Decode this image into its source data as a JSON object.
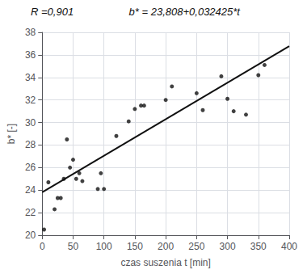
{
  "chart_data": {
    "type": "scatter",
    "x_label": "czas suszenia t [min]",
    "y_label": "b* [-]",
    "annotations": [
      "R =0,901",
      "b* = 23,808+0,032425*t"
    ],
    "series": [
      {
        "type": "scatter",
        "marker": "circle",
        "color": "#111111",
        "x": [
          3,
          10,
          20,
          25,
          30,
          35,
          40,
          45,
          50,
          55,
          60,
          65,
          90,
          95,
          100,
          120,
          140,
          150,
          160,
          165,
          200,
          210,
          250,
          260,
          290,
          300,
          310,
          330,
          350,
          360
        ],
        "values": [
          20.5,
          24.7,
          22.3,
          23.3,
          23.3,
          25.0,
          28.5,
          26.0,
          26.7,
          25.0,
          25.5,
          24.8,
          24.1,
          25.5,
          24.1,
          28.8,
          30.1,
          31.2,
          31.5,
          31.5,
          32.0,
          33.2,
          32.6,
          31.1,
          34.1,
          32.1,
          31.0,
          30.7,
          34.2,
          35.1
        ]
      },
      {
        "type": "line",
        "line_style": "solid",
        "color": "#111111",
        "x": [
          0,
          400
        ],
        "values": [
          23.808,
          36.778
        ]
      }
    ],
    "xlim": [
      0,
      400
    ],
    "ylim": [
      20,
      38
    ],
    "xticks": [
      0,
      50,
      100,
      150,
      200,
      250,
      300,
      350,
      400
    ],
    "yticks": [
      20,
      22,
      24,
      26,
      28,
      30,
      32,
      34,
      36,
      38
    ],
    "grid": true
  }
}
